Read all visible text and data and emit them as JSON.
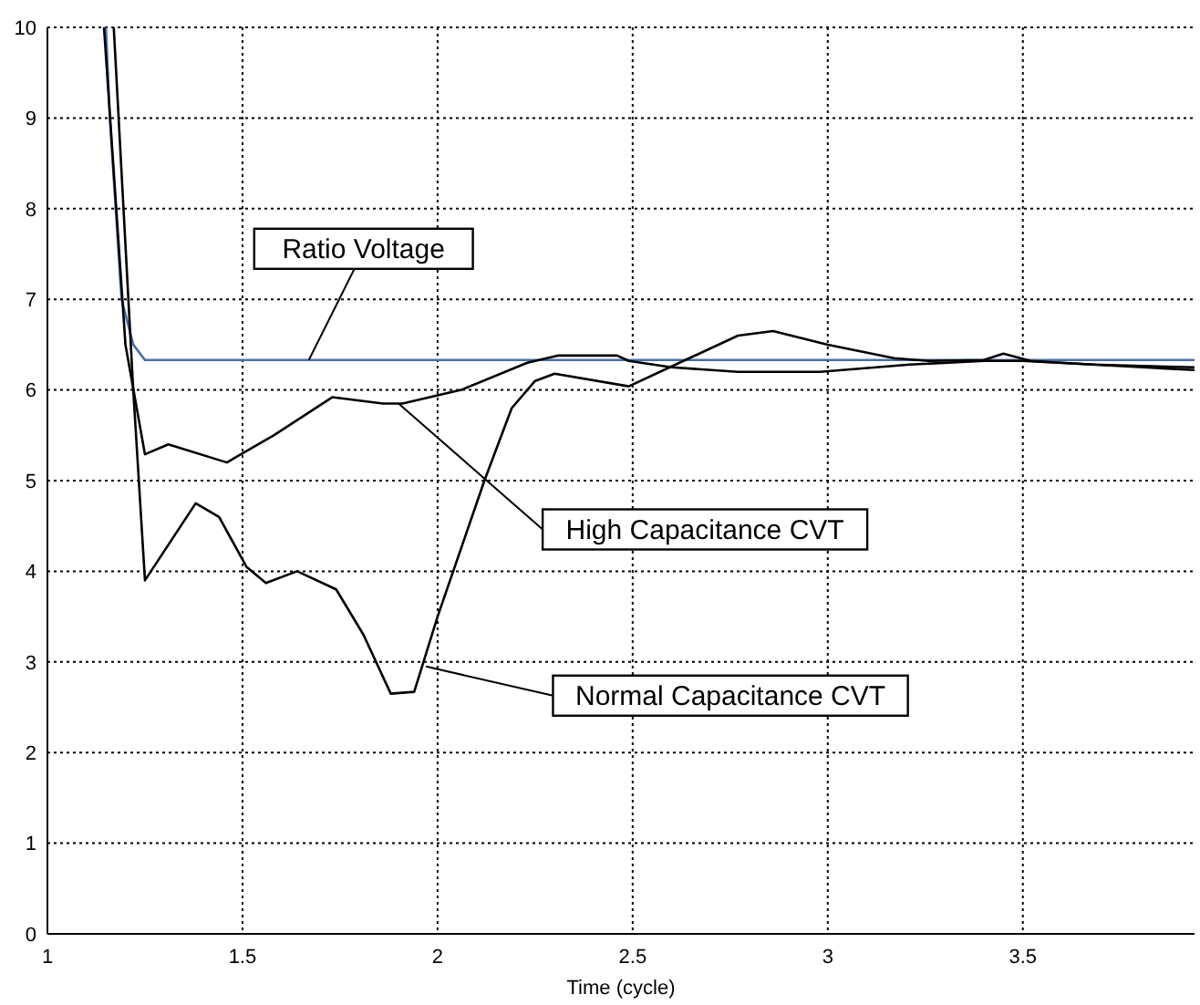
{
  "chart_data": {
    "type": "line",
    "xlabel": "Time (cycle)",
    "xlim": [
      1,
      3.94
    ],
    "xticks": [
      1,
      1.5,
      2,
      2.5,
      3,
      3.5
    ],
    "ylim": [
      0,
      10
    ],
    "yticks": [
      0,
      1,
      2,
      3,
      4,
      5,
      6,
      7,
      8,
      9,
      10
    ],
    "grid": true,
    "legend": false,
    "marker": "none",
    "line_style": "solid",
    "series": [
      {
        "color": "#4a6fa5",
        "x": [
          1.15,
          1.16,
          1.19,
          1.22,
          1.25,
          3.94
        ],
        "values": [
          10,
          9,
          7,
          6.5,
          6.33,
          6.33
        ]
      },
      {
        "color": "#000000",
        "x": [
          1.145,
          1.2,
          1.25,
          1.31,
          1.46,
          1.58,
          1.73,
          1.86,
          1.91,
          2.06,
          2.23,
          2.31,
          2.46,
          2.49,
          2.6,
          2.77,
          2.98,
          3.21,
          3.4,
          3.5,
          3.68,
          3.94
        ],
        "values": [
          10,
          6.5,
          5.29,
          5.4,
          5.2,
          5.5,
          5.92,
          5.85,
          5.85,
          6.0,
          6.3,
          6.38,
          6.38,
          6.32,
          6.25,
          6.2,
          6.2,
          6.28,
          6.32,
          6.32,
          6.28,
          6.22
        ]
      },
      {
        "color": "#000000",
        "x": [
          1.17,
          1.22,
          1.25,
          1.38,
          1.44,
          1.51,
          1.56,
          1.64,
          1.74,
          1.81,
          1.88,
          1.94,
          2.0,
          2.12,
          2.19,
          2.25,
          2.3,
          2.49,
          2.62,
          2.77,
          2.86,
          3.0,
          3.17,
          3.26,
          3.4,
          3.45,
          3.52,
          3.68,
          3.94
        ],
        "values": [
          10,
          6,
          3.9,
          4.75,
          4.6,
          4.05,
          3.87,
          4.0,
          3.8,
          3.3,
          2.65,
          2.67,
          3.5,
          5.0,
          5.8,
          6.1,
          6.18,
          6.04,
          6.3,
          6.6,
          6.65,
          6.5,
          6.35,
          6.32,
          6.33,
          6.4,
          6.32,
          6.28,
          6.25
        ]
      }
    ],
    "annotations": [
      {
        "text": "Ratio Voltage",
        "x": 1.67,
        "y": 6.33
      },
      {
        "text": "High Capacitance CVT",
        "x": 1.9,
        "y": 5.85
      },
      {
        "text": "Normal Capacitance CVT",
        "x": 1.97,
        "y": 2.95
      }
    ]
  }
}
